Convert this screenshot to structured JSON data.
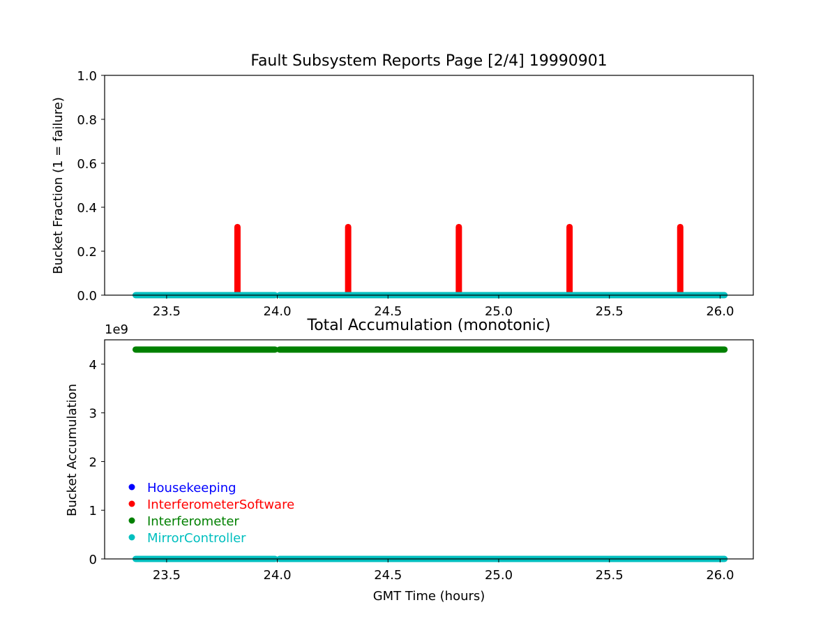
{
  "chart_data": [
    {
      "type": "scatter",
      "title": "Fault Subsystem Reports Page [2/4] 19990901",
      "xlabel": "",
      "ylabel": "Bucket Fraction (1 = failure)",
      "xlim": [
        23.22,
        26.15
      ],
      "ylim": [
        0.0,
        1.0
      ],
      "xticks": [
        "23.5",
        "24.0",
        "24.5",
        "25.0",
        "25.5",
        "26.0"
      ],
      "yticks": [
        "0.0",
        "0.2",
        "0.4",
        "0.6",
        "0.8",
        "1.0"
      ],
      "series": [
        {
          "name": "InterferometerSoftware",
          "color": "#ff0000",
          "spikes": [
            {
              "x": 23.82,
              "ymax": 0.31
            },
            {
              "x": 24.32,
              "ymax": 0.31
            },
            {
              "x": 24.82,
              "ymax": 0.31
            },
            {
              "x": 25.32,
              "ymax": 0.31
            },
            {
              "x": 25.82,
              "ymax": 0.31
            }
          ]
        },
        {
          "name": "MirrorController",
          "color": "#00bfbf",
          "segments": [
            {
              "x_start": 23.36,
              "x_end": 23.99,
              "y": 0.0
            },
            {
              "x_start": 24.01,
              "x_end": 26.02,
              "y": 0.0
            }
          ]
        }
      ]
    },
    {
      "type": "scatter",
      "title": "Total Accumulation (monotonic)",
      "xlabel": "GMT Time (hours)",
      "ylabel": "Bucket Accumulation",
      "offset_label": "1e9",
      "xlim": [
        23.22,
        26.15
      ],
      "ylim": [
        0.0,
        4.5
      ],
      "xticks": [
        "23.5",
        "24.0",
        "24.5",
        "25.0",
        "25.5",
        "26.0"
      ],
      "yticks": [
        "0",
        "1",
        "2",
        "3",
        "4"
      ],
      "series": [
        {
          "name": "Interferometer",
          "color": "#008000",
          "segments": [
            {
              "x_start": 23.36,
              "x_end": 23.99,
              "y": 4.3
            },
            {
              "x_start": 24.01,
              "x_end": 26.02,
              "y": 4.3
            }
          ]
        },
        {
          "name": "MirrorController",
          "color": "#00bfbf",
          "segments": [
            {
              "x_start": 23.36,
              "x_end": 23.99,
              "y": 0.0
            },
            {
              "x_start": 24.01,
              "x_end": 26.02,
              "y": 0.0
            }
          ]
        }
      ],
      "legend": {
        "placement": "lower-left",
        "entries": [
          {
            "label": "Housekeeping",
            "color": "#0000ff"
          },
          {
            "label": "InterferometerSoftware",
            "color": "#ff0000"
          },
          {
            "label": "Interferometer",
            "color": "#008000"
          },
          {
            "label": "MirrorController",
            "color": "#00bfbf"
          }
        ]
      }
    }
  ]
}
